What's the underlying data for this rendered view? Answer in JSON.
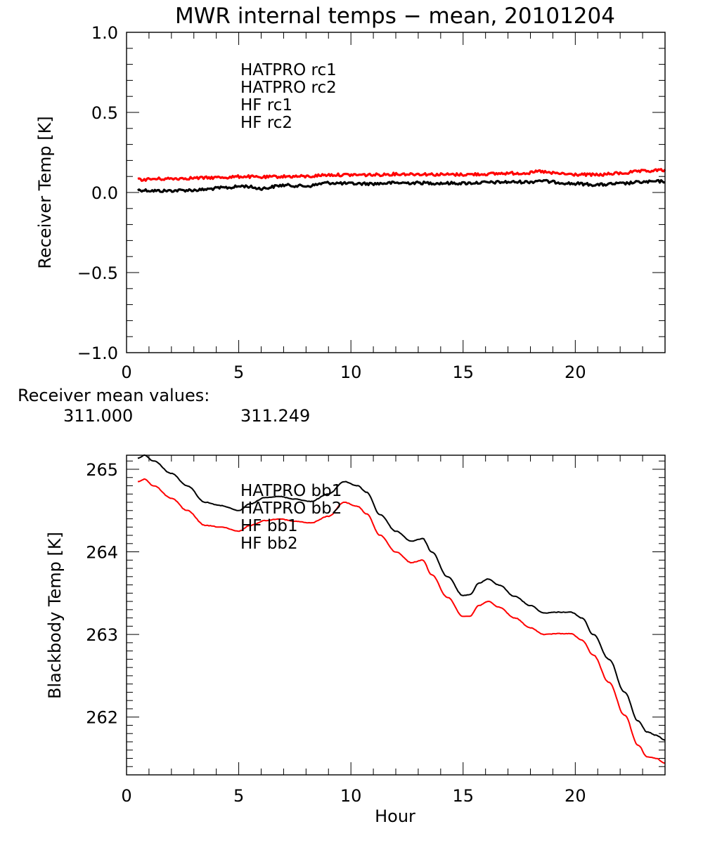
{
  "title": "MWR internal temps − mean, 20101204",
  "receiver_mean": {
    "label": "Receiver mean values:",
    "values": [
      {
        "text": "311.000",
        "color": "#000000"
      },
      {
        "text": "311.249",
        "color": "#ff0000"
      }
    ]
  },
  "chart_data": [
    {
      "type": "line",
      "title": "MWR internal temps − mean, 20101204",
      "xlabel": "",
      "ylabel": "Receiver Temp [K]",
      "xlim": [
        0,
        24
      ],
      "ylim": [
        -1.0,
        1.0
      ],
      "xticks": [
        0,
        5,
        10,
        15,
        20
      ],
      "xtick_labels": [
        "0",
        "5",
        "10",
        "15",
        "20"
      ],
      "xminor": 1,
      "yticks": [
        1.0,
        0.5,
        0.0,
        -0.5,
        -1.0
      ],
      "ytick_labels": [
        "1.0",
        "0.5",
        "0.0",
        "−0.5",
        "−1.0"
      ],
      "yminor": 0.1,
      "grid": false,
      "legend_position": "top-left-inside",
      "legend": [
        {
          "name": "HATPRO rc1",
          "color": "#000000"
        },
        {
          "name": "HATPRO rc2",
          "color": "#ff0000"
        },
        {
          "name": "HF rc1",
          "color": "#2020d0"
        },
        {
          "name": "HF rc2",
          "color": "#1e78e6"
        }
      ],
      "series": [
        {
          "name": "HATPRO rc1",
          "color": "#000000",
          "noisy": true,
          "x": [
            0.5,
            1.5,
            3,
            4.5,
            5.2,
            6,
            7,
            8,
            9,
            10,
            11,
            12,
            13,
            14,
            15,
            16,
            17,
            18,
            18.4,
            19,
            20,
            21,
            22,
            23,
            24
          ],
          "y": [
            0.015,
            0.01,
            0.015,
            0.03,
            0.04,
            0.025,
            0.045,
            0.04,
            0.06,
            0.055,
            0.055,
            0.06,
            0.06,
            0.058,
            0.058,
            0.062,
            0.065,
            0.066,
            0.075,
            0.065,
            0.055,
            0.048,
            0.055,
            0.065,
            0.07
          ]
        },
        {
          "name": "HATPRO rc2",
          "color": "#ff0000",
          "noisy": true,
          "x": [
            0.5,
            1.5,
            3,
            4.5,
            5.2,
            6,
            7,
            8,
            9,
            10,
            11,
            12,
            13,
            14,
            15,
            16,
            17,
            18,
            18.4,
            19,
            20,
            21,
            22,
            23,
            24
          ],
          "y": [
            0.08,
            0.085,
            0.09,
            0.095,
            0.1,
            0.095,
            0.1,
            0.1,
            0.11,
            0.11,
            0.11,
            0.115,
            0.115,
            0.112,
            0.112,
            0.115,
            0.12,
            0.122,
            0.132,
            0.12,
            0.112,
            0.11,
            0.12,
            0.132,
            0.14
          ]
        }
      ]
    },
    {
      "type": "line",
      "title": "",
      "xlabel": "Hour",
      "ylabel": "Blackbody Temp [K]",
      "xlim": [
        0,
        24
      ],
      "ylim": [
        261.3,
        265.17
      ],
      "xticks": [
        0,
        5,
        10,
        15,
        20
      ],
      "xtick_labels": [
        "0",
        "5",
        "10",
        "15",
        "20"
      ],
      "xminor": 1,
      "yticks": [
        265,
        264,
        263,
        262
      ],
      "ytick_labels": [
        "265",
        "264",
        "263",
        "262"
      ],
      "yminor": 0.1,
      "grid": false,
      "legend_position": "top-left-inside",
      "legend": [
        {
          "name": "HATPRO bb1",
          "color": "#000000"
        },
        {
          "name": "HATPRO bb2",
          "color": "#ff0000"
        },
        {
          "name": "HF bb1",
          "color": "#2020d0"
        },
        {
          "name": "HF bb2",
          "color": "#1e78e6"
        }
      ],
      "series": [
        {
          "name": "HATPRO bb1",
          "color": "#000000",
          "noisy": false,
          "x": [
            0.5,
            0.8,
            1.2,
            2,
            2.7,
            3.5,
            4.2,
            5,
            5.5,
            6.2,
            6.8,
            7.5,
            8.2,
            9,
            9.7,
            10.3,
            10.7,
            11.3,
            12,
            12.7,
            13.2,
            13.6,
            14.3,
            15,
            15.3,
            15.7,
            16.1,
            16.6,
            17.3,
            18,
            18.6,
            19.2,
            19.8,
            20.3,
            20.8,
            21.5,
            22.2,
            22.8,
            23.2,
            23.6,
            24
          ],
          "y": [
            265.13,
            265.17,
            265.1,
            264.95,
            264.8,
            264.6,
            264.56,
            264.5,
            264.58,
            264.66,
            264.67,
            264.64,
            264.61,
            264.7,
            264.85,
            264.8,
            264.72,
            264.45,
            264.25,
            264.13,
            264.16,
            264.0,
            263.7,
            263.47,
            263.48,
            263.62,
            263.67,
            263.6,
            263.46,
            263.35,
            263.26,
            263.27,
            263.27,
            263.2,
            263.0,
            262.7,
            262.3,
            261.95,
            261.82,
            261.78,
            261.72
          ]
        },
        {
          "name": "HATPRO bb2",
          "color": "#ff0000",
          "noisy": false,
          "x": [
            0.5,
            0.8,
            1.2,
            2,
            2.7,
            3.5,
            4.2,
            5,
            5.5,
            6.2,
            6.8,
            7.5,
            8.2,
            9,
            9.7,
            10.3,
            10.7,
            11.3,
            12,
            12.7,
            13.2,
            13.6,
            14.3,
            15,
            15.3,
            15.7,
            16.1,
            16.6,
            17.3,
            18,
            18.6,
            19.2,
            19.8,
            20.3,
            20.8,
            21.5,
            22.2,
            22.8,
            23.2,
            23.6,
            24
          ],
          "y": [
            264.85,
            264.88,
            264.8,
            264.65,
            264.5,
            264.32,
            264.3,
            264.25,
            264.32,
            264.38,
            264.4,
            264.37,
            264.35,
            264.43,
            264.6,
            264.55,
            264.46,
            264.2,
            264.0,
            263.87,
            263.9,
            263.72,
            263.45,
            263.22,
            263.22,
            263.35,
            263.4,
            263.33,
            263.2,
            263.08,
            263.0,
            263.01,
            263.01,
            262.93,
            262.75,
            262.42,
            262.02,
            261.66,
            261.52,
            261.5,
            261.44
          ]
        }
      ]
    }
  ]
}
